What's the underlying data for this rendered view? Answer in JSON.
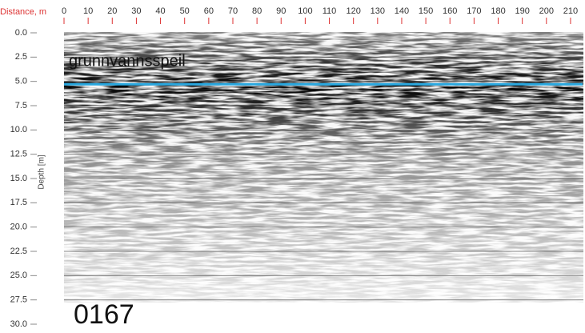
{
  "chart_data": {
    "type": "radargram",
    "x_label": "Distance, m",
    "y_label": "Depth [m]",
    "xlim": [
      0,
      215
    ],
    "xticks": [
      0,
      10,
      20,
      30,
      40,
      50,
      60,
      70,
      80,
      90,
      100,
      110,
      120,
      130,
      140,
      150,
      160,
      170,
      180,
      190,
      200,
      210
    ],
    "ylim": [
      0,
      30
    ],
    "yticks": [
      {
        "value": 0,
        "label": "0.0"
      },
      2.5,
      {
        "value": 5,
        "label": "5.0"
      },
      7.5,
      {
        "value": 10,
        "label": "10.0"
      },
      12.5,
      {
        "value": 15,
        "label": "15.0"
      },
      17.5,
      {
        "value": 20,
        "label": "20.0"
      },
      22.5,
      {
        "value": 25,
        "label": "25.0"
      },
      27.5,
      {
        "value": 30,
        "label": "30.0"
      }
    ],
    "grid": true,
    "water_table": {
      "label": "grunnvannsspeil",
      "x": [
        0,
        215
      ],
      "values": [
        5.3,
        5.3
      ],
      "color": "#29a8e0"
    },
    "profile_label": "0167"
  }
}
